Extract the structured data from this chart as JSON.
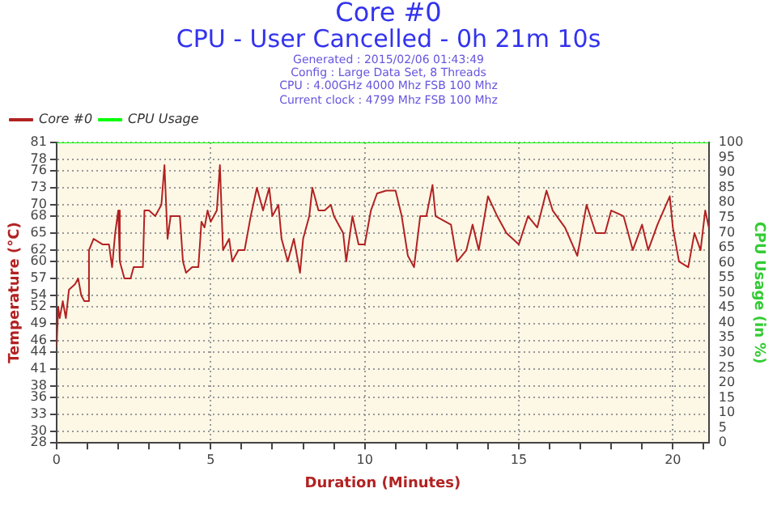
{
  "chart_data": {
    "type": "line",
    "title": "Core #0",
    "subtitle": "CPU - User Cancelled - 0h 21m 10s",
    "annotations": [
      "Generated : 2015/02/06 01:43:49",
      "Config : Large Data Set, 8 Threads",
      "CPU : 4.00GHz 4000 Mhz FSB 100 Mhz",
      "Current clock : 4799 Mhz FSB 100 Mhz"
    ],
    "xlabel": "Duration (Minutes)",
    "ylabel": "Temperature (°C)",
    "y2label": "CPU Usage (in %)",
    "xlim": [
      0,
      21.17
    ],
    "xticks": [
      0,
      {
        "value": 1,
        "label": null
      },
      {
        "value": 2,
        "label": null
      },
      {
        "value": 3,
        "label": null
      },
      {
        "value": 4,
        "label": null
      },
      5,
      {
        "value": 6,
        "label": null
      },
      {
        "value": 7,
        "label": null
      },
      {
        "value": 8,
        "label": null
      },
      {
        "value": 9,
        "label": null
      },
      10,
      {
        "value": 11,
        "label": null
      },
      {
        "value": 12,
        "label": null
      },
      {
        "value": 13,
        "label": null
      },
      {
        "value": 14,
        "label": null
      },
      15,
      {
        "value": 16,
        "label": null
      },
      {
        "value": 17,
        "label": null
      },
      {
        "value": 18,
        "label": null
      },
      {
        "value": 19,
        "label": null
      },
      20,
      {
        "value": 21,
        "label": null
      }
    ],
    "ylim": [
      28,
      81
    ],
    "yticks": [
      28,
      30,
      33,
      36,
      38,
      41,
      44,
      46,
      49,
      52,
      54,
      57,
      60,
      62,
      65,
      68,
      70,
      73,
      76,
      78,
      81
    ],
    "y2lim": [
      0,
      100
    ],
    "y2ticks": [
      0,
      5,
      10,
      15,
      20,
      25,
      30,
      35,
      40,
      45,
      50,
      55,
      60,
      65,
      70,
      75,
      80,
      85,
      90,
      95,
      100
    ],
    "grid": true,
    "legend": "top left",
    "marker": "none",
    "line_style": "solid",
    "series": [
      {
        "name": "Core #0",
        "color": "#b22222",
        "x": [
          0,
          0.05,
          0.1,
          0.2,
          0.3,
          0.4,
          0.6,
          0.7,
          0.8,
          0.9,
          1.0,
          1.05,
          1.2,
          1.5,
          1.7,
          1.8,
          1.9,
          2.0,
          2.05,
          2.2,
          2.4,
          2.5,
          2.8,
          2.85,
          3.0,
          3.2,
          3.4,
          3.5,
          3.6,
          3.7,
          4.0,
          4.1,
          4.2,
          4.4,
          4.6,
          4.7,
          4.8,
          4.9,
          5.0,
          5.2,
          5.3,
          5.4,
          5.6,
          5.7,
          5.9,
          6.1,
          6.3,
          6.5,
          6.7,
          6.9,
          7.0,
          7.2,
          7.3,
          7.5,
          7.7,
          7.9,
          8.0,
          8.2,
          8.3,
          8.5,
          8.7,
          8.9,
          9.0,
          9.3,
          9.4,
          9.6,
          9.8,
          10.0,
          10.2,
          10.4,
          10.7,
          11.0,
          11.2,
          11.4,
          11.6,
          11.8,
          12.0,
          12.2,
          12.3,
          12.8,
          13.0,
          13.3,
          13.5,
          13.7,
          14.0,
          14.3,
          14.6,
          15.0,
          15.3,
          15.6,
          15.9,
          16.1,
          16.5,
          16.9,
          17.2,
          17.5,
          17.8,
          18.0,
          18.4,
          18.7,
          19.0,
          19.2,
          19.5,
          19.9,
          20.0,
          20.2,
          20.5,
          20.7,
          20.9,
          21.05,
          21.17
        ],
        "values": [
          45,
          52,
          50,
          53,
          50,
          55,
          56,
          57,
          54,
          53,
          53,
          62,
          64,
          63,
          63,
          59,
          65,
          69,
          60,
          57,
          57,
          59,
          59,
          69,
          69,
          68,
          70,
          77,
          64,
          68,
          68,
          60,
          58,
          59,
          59,
          67,
          66,
          69,
          67,
          69,
          77,
          62,
          64,
          60,
          62,
          62,
          68,
          73,
          69,
          73,
          68,
          70,
          64,
          60,
          64,
          58,
          64,
          68,
          73,
          69,
          69,
          70,
          68,
          65,
          60,
          68,
          63,
          63,
          69,
          72,
          72.5,
          72.5,
          68,
          61,
          59,
          68,
          68,
          73.5,
          68,
          66.5,
          60,
          62,
          66.5,
          62,
          71.5,
          68,
          65,
          63,
          68,
          66,
          72.5,
          69,
          66,
          61,
          70,
          65,
          65,
          69,
          68,
          62,
          66.5,
          62,
          66.5,
          71.5,
          66,
          60,
          59,
          65,
          62,
          69,
          66
        ]
      },
      {
        "name": "CPU Usage",
        "color": "#00ff00",
        "axis": "y2",
        "x": [
          0,
          21.17
        ],
        "values": [
          100,
          100
        ]
      }
    ]
  }
}
